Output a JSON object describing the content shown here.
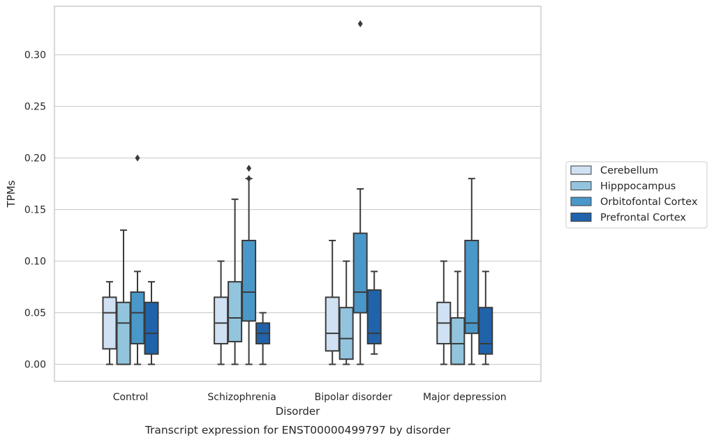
{
  "chart_data": {
    "type": "box",
    "xlabel": "Disorder",
    "ylabel": "TPMs",
    "caption": "Transcript expression for ENST00000499797 by disorder",
    "ylim": [
      -0.0165,
      0.347
    ],
    "yticks": [
      "0.00",
      "0.05",
      "0.10",
      "0.15",
      "0.20",
      "0.25",
      "0.30"
    ],
    "grid": true,
    "legend_position": "right",
    "categories": [
      "Control",
      "Schizophrenia",
      "Bipolar disorder",
      "Major depression"
    ],
    "series": [
      {
        "name": "Cerebellum",
        "color": "#cfe1f2",
        "boxes": [
          {
            "whislo": 0.0,
            "q1": 0.015,
            "med": 0.05,
            "q3": 0.065,
            "whishi": 0.08,
            "fliers": []
          },
          {
            "whislo": 0.0,
            "q1": 0.02,
            "med": 0.04,
            "q3": 0.065,
            "whishi": 0.1,
            "fliers": []
          },
          {
            "whislo": 0.0,
            "q1": 0.013,
            "med": 0.03,
            "q3": 0.065,
            "whishi": 0.12,
            "fliers": []
          },
          {
            "whislo": 0.0,
            "q1": 0.02,
            "med": 0.04,
            "q3": 0.06,
            "whishi": 0.1,
            "fliers": []
          }
        ]
      },
      {
        "name": "Hipppocampus",
        "color": "#93c4de",
        "boxes": [
          {
            "whislo": 0.0,
            "q1": 0.0,
            "med": 0.04,
            "q3": 0.06,
            "whishi": 0.13,
            "fliers": []
          },
          {
            "whislo": 0.0,
            "q1": 0.022,
            "med": 0.045,
            "q3": 0.08,
            "whishi": 0.16,
            "fliers": []
          },
          {
            "whislo": 0.0,
            "q1": 0.005,
            "med": 0.025,
            "q3": 0.055,
            "whishi": 0.1,
            "fliers": []
          },
          {
            "whislo": 0.0,
            "q1": 0.0,
            "med": 0.02,
            "q3": 0.045,
            "whishi": 0.09,
            "fliers": []
          }
        ]
      },
      {
        "name": "Orbitofontal Cortex",
        "color": "#4a98c9",
        "boxes": [
          {
            "whislo": 0.0,
            "q1": 0.02,
            "med": 0.05,
            "q3": 0.07,
            "whishi": 0.09,
            "fliers": [
              0.2
            ]
          },
          {
            "whislo": 0.0,
            "q1": 0.042,
            "med": 0.07,
            "q3": 0.12,
            "whishi": 0.18,
            "fliers": [
              0.18,
              0.19
            ]
          },
          {
            "whislo": 0.0,
            "q1": 0.05,
            "med": 0.07,
            "q3": 0.127,
            "whishi": 0.17,
            "fliers": [
              0.33
            ]
          },
          {
            "whislo": 0.0,
            "q1": 0.03,
            "med": 0.04,
            "q3": 0.12,
            "whishi": 0.18,
            "fliers": []
          }
        ]
      },
      {
        "name": "Prefrontal Cortex",
        "color": "#2163aa",
        "boxes": [
          {
            "whislo": 0.0,
            "q1": 0.01,
            "med": 0.03,
            "q3": 0.06,
            "whishi": 0.08,
            "fliers": []
          },
          {
            "whislo": 0.0,
            "q1": 0.02,
            "med": 0.03,
            "q3": 0.04,
            "whishi": 0.05,
            "fliers": []
          },
          {
            "whislo": 0.01,
            "q1": 0.02,
            "med": 0.03,
            "q3": 0.072,
            "whishi": 0.09,
            "fliers": []
          },
          {
            "whislo": 0.0,
            "q1": 0.01,
            "med": 0.02,
            "q3": 0.055,
            "whishi": 0.09,
            "fliers": []
          }
        ]
      }
    ],
    "style_colors": {
      "line": "#3a3a3a",
      "grid": "#cccccc",
      "frame": "#cccccc"
    }
  }
}
